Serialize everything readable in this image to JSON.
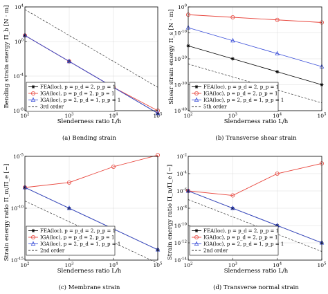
{
  "chart_data": [
    {
      "type": "line",
      "caption": "(a) Bending strain",
      "xlabel": "Slenderness ratio L/h",
      "ylabel": "Bending strain energy Π_b [N · m]",
      "xscale": "log",
      "yscale": "log",
      "xlim": [
        100,
        100000
      ],
      "ylim": [
        1e-08,
        10000.0
      ],
      "x_ticks": [
        100,
        1000,
        10000,
        100000
      ],
      "y_ticks": [
        1e-08,
        0.0001,
        1.0,
        10000.0
      ],
      "x": [
        100,
        1000,
        10000,
        100000
      ],
      "legend_position": "bottom-left",
      "grid": true,
      "series": [
        {
          "name": "FEA(loc), p = p_d = 2, p_p = 1",
          "color": "#000000",
          "marker": "asterisk",
          "dashed": false,
          "values": [
            5.0,
            0.005,
            5e-06,
            5e-09
          ]
        },
        {
          "name": "IGA(loc), p = p_d = 2, p_p = 1",
          "color": "#e8453c",
          "marker": "circle",
          "dashed": false,
          "values": [
            5.0,
            0.005,
            5e-06,
            1e-08
          ]
        },
        {
          "name": "IGA(loc), p = 2, p_d = 1, p_p = 1",
          "color": "#3b4fd9",
          "marker": "triangle",
          "dashed": false,
          "values": [
            5.0,
            0.005,
            5e-06,
            5e-09
          ]
        },
        {
          "name": "3rd order",
          "color": "#333333",
          "marker": "none",
          "dashed": true,
          "values": [
            5000.0,
            5.0,
            0.005,
            5e-06
          ]
        }
      ]
    },
    {
      "type": "line",
      "caption": "(b) Transverse shear strain",
      "xlabel": "Slenderness ratio L/h",
      "ylabel": "Shear strain energy Π_s [N · m]",
      "xscale": "log",
      "yscale": "log",
      "xlim": [
        100,
        100000
      ],
      "ylim": [
        1e-40,
        1.0
      ],
      "x_ticks": [
        100,
        1000,
        10000,
        100000
      ],
      "y_ticks": [
        1e-40,
        1e-30,
        1e-20,
        1e-10,
        1.0
      ],
      "x": [
        100,
        1000,
        10000,
        100000
      ],
      "legend_position": "bottom-left",
      "grid": true,
      "series": [
        {
          "name": "FEA(loc), p = p_d = 2, p_p = 1",
          "color": "#000000",
          "marker": "asterisk",
          "dashed": false,
          "values": [
            1e-15,
            1e-20,
            1e-25,
            1e-30
          ]
        },
        {
          "name": "IGA(loc), p = p_d = 2, p_p = 1",
          "color": "#e8453c",
          "marker": "circle",
          "dashed": false,
          "values": [
            0.001,
            0.0001,
            1e-05,
            1e-06
          ]
        },
        {
          "name": "IGA(loc), p = 2, p_d = 1, p_p = 1",
          "color": "#3b4fd9",
          "marker": "triangle",
          "dashed": false,
          "values": [
            1e-08,
            1e-13,
            1e-18,
            1e-23
          ]
        },
        {
          "name": "5th order",
          "color": "#333333",
          "marker": "none",
          "dashed": true,
          "values": [
            1e-22,
            1e-27,
            1e-32,
            1e-37
          ]
        }
      ]
    },
    {
      "type": "line",
      "caption": "(c) Membrane strain",
      "xlabel": "Slenderness ratio L/h",
      "ylabel": "Strain energy ratio Π_m/Π_e [−]",
      "xscale": "log",
      "yscale": "log",
      "xlim": [
        100,
        100000
      ],
      "ylim": [
        1e-15,
        1e-05
      ],
      "x_ticks": [
        100,
        1000,
        10000,
        100000
      ],
      "y_ticks": [
        1e-15,
        1e-10,
        1e-05
      ],
      "x": [
        100,
        1000,
        10000,
        100000
      ],
      "legend_position": "bottom-left",
      "grid": true,
      "series": [
        {
          "name": "FEA(loc), p = p_d = 2, p_p = 1",
          "color": "#000000",
          "marker": "asterisk",
          "dashed": false,
          "values": [
            1e-08,
            1e-10,
            1e-12,
            1e-14
          ]
        },
        {
          "name": "IGA(loc), p = p_d = 2, p_p = 1",
          "color": "#e8453c",
          "marker": "circle",
          "dashed": false,
          "values": [
            1e-08,
            3e-08,
            1e-06,
            1.3e-05
          ]
        },
        {
          "name": "IGA(loc), p = 2, p_d = 1, p_p = 1",
          "color": "#3b4fd9",
          "marker": "triangle",
          "dashed": false,
          "values": [
            1e-08,
            1e-10,
            1e-12,
            1e-14
          ]
        },
        {
          "name": "2nd order",
          "color": "#333333",
          "marker": "none",
          "dashed": true,
          "values": [
            5e-10,
            5e-12,
            5e-14,
            5e-16
          ]
        }
      ]
    },
    {
      "type": "line",
      "caption": "(d) Transverse normal strain",
      "xlabel": "Slenderness ratio L/h",
      "ylabel": "Strain energy ratio Π_n/Π_e [−]",
      "xscale": "log",
      "yscale": "log",
      "xlim": [
        100,
        100000
      ],
      "ylim": [
        1e-14,
        0.01
      ],
      "x_ticks": [
        100,
        1000,
        10000,
        100000
      ],
      "y_ticks": [
        1e-14,
        1e-12,
        1e-10,
        1e-08,
        1e-06,
        0.0001,
        0.01
      ],
      "x": [
        100,
        1000,
        10000,
        100000
      ],
      "legend_position": "bottom-left",
      "grid": true,
      "series": [
        {
          "name": "FEA(loc), p = p_d = 2, p_p = 1",
          "color": "#000000",
          "marker": "asterisk",
          "dashed": false,
          "values": [
            1e-06,
            1e-08,
            1e-10,
            1e-12
          ]
        },
        {
          "name": "IGA(loc), p = p_d = 2, p_p = 1",
          "color": "#e8453c",
          "marker": "circle",
          "dashed": false,
          "values": [
            1e-06,
            3e-07,
            0.0001,
            0.0015
          ]
        },
        {
          "name": "IGA(loc), p = 2, p_d = 1, p_p = 1",
          "color": "#3b4fd9",
          "marker": "triangle",
          "dashed": false,
          "values": [
            1e-06,
            1e-08,
            1e-10,
            1e-12
          ]
        },
        {
          "name": "2nd order",
          "color": "#333333",
          "marker": "none",
          "dashed": true,
          "values": [
            1e-07,
            1e-09,
            1e-11,
            1e-13
          ]
        }
      ]
    }
  ]
}
